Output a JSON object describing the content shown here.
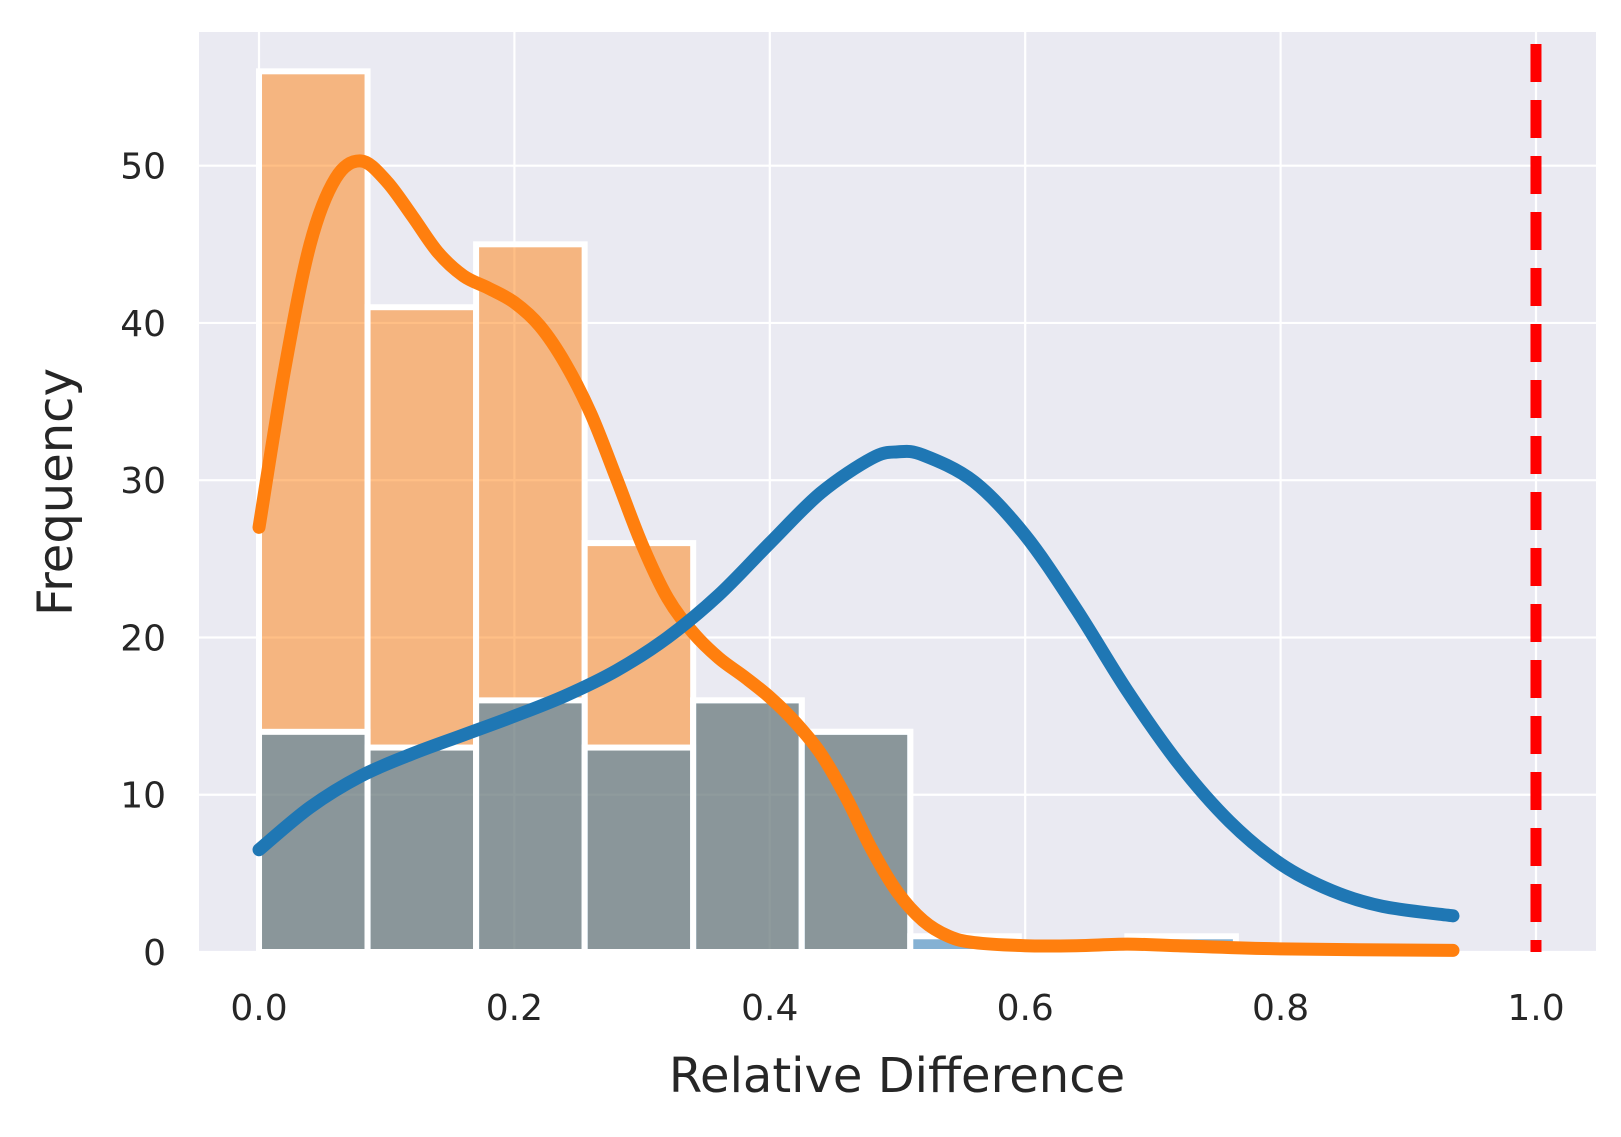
{
  "chart_data": {
    "type": "bar",
    "title": "",
    "xlabel": "Relative Difference",
    "ylabel": "Frequency",
    "xlim": [
      -0.047,
      1.047
    ],
    "ylim": [
      0,
      58.5
    ],
    "xticks": [
      0.0,
      0.2,
      0.4,
      0.6,
      0.8,
      1.0
    ],
    "xtick_labels": [
      "0.0",
      "0.2",
      "0.4",
      "0.6",
      "0.8",
      "1.0"
    ],
    "yticks": [
      0,
      10,
      20,
      30,
      40,
      50
    ],
    "ytick_labels": [
      "0",
      "10",
      "20",
      "30",
      "40",
      "50"
    ],
    "grid": true,
    "bin_edges": [
      0.0,
      0.085,
      0.17,
      0.255,
      0.34,
      0.425,
      0.51,
      0.595,
      0.68,
      0.765,
      0.85,
      0.935
    ],
    "series": [
      {
        "name": "blue",
        "color": "#1f77b4",
        "values": [
          14,
          13,
          16,
          13,
          16,
          14,
          1,
          0,
          1,
          0,
          0
        ],
        "kde": [
          [
            0.0,
            6.5
          ],
          [
            0.04,
            9.2
          ],
          [
            0.08,
            11.2
          ],
          [
            0.12,
            12.6
          ],
          [
            0.16,
            13.8
          ],
          [
            0.2,
            15.0
          ],
          [
            0.24,
            16.3
          ],
          [
            0.28,
            17.9
          ],
          [
            0.32,
            20.0
          ],
          [
            0.36,
            22.7
          ],
          [
            0.4,
            26.0
          ],
          [
            0.44,
            29.2
          ],
          [
            0.48,
            31.4
          ],
          [
            0.5,
            31.8
          ],
          [
            0.52,
            31.6
          ],
          [
            0.56,
            29.9
          ],
          [
            0.6,
            26.5
          ],
          [
            0.64,
            21.8
          ],
          [
            0.68,
            16.6
          ],
          [
            0.72,
            12.0
          ],
          [
            0.76,
            8.3
          ],
          [
            0.8,
            5.6
          ],
          [
            0.84,
            3.9
          ],
          [
            0.88,
            2.9
          ],
          [
            0.935,
            2.3
          ]
        ]
      },
      {
        "name": "orange",
        "color": "#ff7f0e",
        "values": [
          56,
          41,
          45,
          26,
          16,
          14,
          0,
          0,
          0,
          0,
          0
        ],
        "kde": [
          [
            0.0,
            27
          ],
          [
            0.02,
            37
          ],
          [
            0.04,
            45
          ],
          [
            0.06,
            49.2
          ],
          [
            0.08,
            50.3
          ],
          [
            0.1,
            49.0
          ],
          [
            0.12,
            46.8
          ],
          [
            0.14,
            44.5
          ],
          [
            0.16,
            43.0
          ],
          [
            0.18,
            42.2
          ],
          [
            0.2,
            41.3
          ],
          [
            0.22,
            39.8
          ],
          [
            0.24,
            37.4
          ],
          [
            0.26,
            34.2
          ],
          [
            0.28,
            30.1
          ],
          [
            0.3,
            25.9
          ],
          [
            0.32,
            22.5
          ],
          [
            0.34,
            20.3
          ],
          [
            0.36,
            18.7
          ],
          [
            0.38,
            17.5
          ],
          [
            0.4,
            16.2
          ],
          [
            0.42,
            14.6
          ],
          [
            0.44,
            12.6
          ],
          [
            0.46,
            9.8
          ],
          [
            0.48,
            6.5
          ],
          [
            0.5,
            3.8
          ],
          [
            0.52,
            2.0
          ],
          [
            0.54,
            1.0
          ],
          [
            0.56,
            0.6
          ],
          [
            0.6,
            0.4
          ],
          [
            0.64,
            0.4
          ],
          [
            0.68,
            0.5
          ],
          [
            0.72,
            0.4
          ],
          [
            0.8,
            0.2
          ],
          [
            0.935,
            0.1
          ]
        ]
      }
    ],
    "reference_line": {
      "x": 1.0,
      "color": "#ff0000",
      "style": "dashed"
    }
  }
}
